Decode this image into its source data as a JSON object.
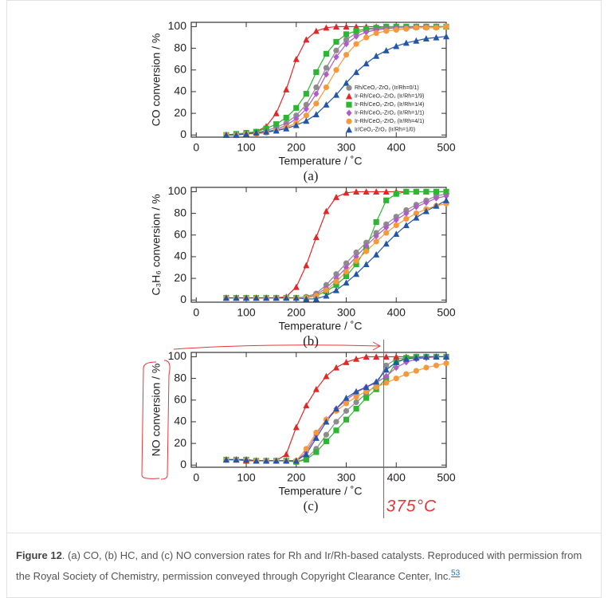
{
  "chart_data": [
    {
      "type": "line",
      "ylabel": "CO conversion / %",
      "xlabel": "Temperature / ˚C",
      "sublabel": "(a)",
      "x": [
        60,
        80,
        100,
        120,
        140,
        160,
        180,
        200,
        220,
        240,
        260,
        280,
        300,
        320,
        340,
        360,
        380,
        400,
        420,
        440,
        460,
        480,
        500
      ],
      "xlim": [
        -10,
        500
      ],
      "xticks": [
        0,
        100,
        200,
        300,
        400,
        500
      ],
      "ylim": [
        -2,
        104
      ],
      "yticks": [
        0,
        20,
        40,
        60,
        80,
        100
      ],
      "legend": "lower right",
      "series": [
        {
          "name": "Rh/CeO₂-ZrO₂ (Ir/Rh=0/1)",
          "color": "#8c8c8c",
          "marker": "circle",
          "values": [
            0,
            1,
            1,
            2,
            4,
            7,
            11,
            18,
            28,
            44,
            62,
            78,
            88,
            94,
            97,
            98,
            99,
            100,
            100,
            100,
            100,
            100,
            100
          ]
        },
        {
          "name": "Ir-Rh/CeO₂-ZrO₂ (Ir/Rh=1/9)",
          "color": "#e02828",
          "marker": "triangle",
          "values": [
            0,
            0,
            1,
            3,
            8,
            20,
            42,
            70,
            88,
            96,
            99,
            100,
            100,
            100,
            100,
            100,
            100,
            100,
            100,
            100,
            100,
            100,
            100
          ]
        },
        {
          "name": "Ir-Rh/CeO₂-ZrO₂ (Ir/Rh=1/4)",
          "color": "#2fb534",
          "marker": "square",
          "values": [
            0,
            1,
            2,
            3,
            6,
            10,
            16,
            25,
            38,
            58,
            75,
            86,
            93,
            96,
            98,
            99,
            100,
            100,
            100,
            100,
            100,
            100,
            100
          ]
        },
        {
          "name": "Ir-Rh/CeO₂-ZrO₂ (Ir/Rh=1/1)",
          "color": "#b05cc8",
          "marker": "diamond",
          "values": [
            0,
            0,
            1,
            1,
            3,
            5,
            9,
            15,
            24,
            38,
            56,
            72,
            84,
            91,
            95,
            97,
            98,
            99,
            99,
            100,
            100,
            100,
            100
          ]
        },
        {
          "name": "Ir-Rh/CeO₂-ZrO₂ (Ir/Rh=4/1)",
          "color": "#f59a3c",
          "marker": "circle",
          "values": [
            0,
            0,
            1,
            1,
            2,
            4,
            7,
            11,
            18,
            29,
            44,
            60,
            74,
            84,
            90,
            94,
            96,
            97,
            98,
            99,
            99,
            99,
            100
          ]
        },
        {
          "name": "Ir/CeO₂-ZrO₂ (Ir/Rh=1/0)",
          "color": "#2456a6",
          "marker": "triangle",
          "values": [
            0,
            0,
            1,
            2,
            3,
            4,
            6,
            9,
            13,
            19,
            28,
            37,
            48,
            58,
            66,
            73,
            78,
            82,
            85,
            87,
            89,
            90,
            91
          ]
        }
      ]
    },
    {
      "type": "line",
      "ylabel": "C₃H₆ conversion / %",
      "xlabel": "Temperature / ˚C",
      "sublabel": "(b)",
      "x": [
        60,
        80,
        100,
        120,
        140,
        160,
        180,
        200,
        220,
        240,
        260,
        280,
        300,
        320,
        340,
        360,
        380,
        400,
        420,
        440,
        460,
        480,
        500
      ],
      "xlim": [
        -10,
        500
      ],
      "xticks": [
        0,
        100,
        200,
        300,
        400,
        500
      ],
      "ylim": [
        -2,
        104
      ],
      "yticks": [
        0,
        20,
        40,
        60,
        80,
        100
      ],
      "series": [
        {
          "color": "#8c8c8c",
          "marker": "circle",
          "values": [
            2,
            2,
            2,
            2,
            2,
            2,
            2,
            2,
            3,
            6,
            14,
            24,
            34,
            44,
            53,
            62,
            70,
            77,
            83,
            88,
            92,
            96,
            98
          ]
        },
        {
          "color": "#e02828",
          "marker": "triangle",
          "values": [
            2,
            2,
            2,
            2,
            2,
            2,
            3,
            12,
            32,
            58,
            82,
            95,
            99,
            100,
            100,
            100,
            100,
            100,
            100,
            100,
            100,
            100,
            100
          ]
        },
        {
          "color": "#2fb534",
          "marker": "square",
          "values": [
            2,
            2,
            2,
            2,
            2,
            2,
            2,
            2,
            2,
            4,
            8,
            14,
            22,
            33,
            48,
            72,
            92,
            98,
            100,
            100,
            100,
            100,
            100
          ]
        },
        {
          "color": "#b05cc8",
          "marker": "diamond",
          "values": [
            2,
            2,
            2,
            2,
            2,
            2,
            2,
            2,
            2,
            5,
            11,
            20,
            30,
            40,
            50,
            59,
            67,
            74,
            80,
            86,
            90,
            94,
            96
          ]
        },
        {
          "color": "#f59a3c",
          "marker": "circle",
          "values": [
            2,
            2,
            2,
            2,
            2,
            2,
            2,
            2,
            2,
            4,
            9,
            17,
            26,
            36,
            45,
            54,
            62,
            69,
            75,
            80,
            84,
            87,
            89
          ]
        },
        {
          "color": "#2456a6",
          "marker": "triangle",
          "values": [
            2,
            2,
            2,
            2,
            2,
            2,
            2,
            2,
            1,
            1,
            4,
            9,
            16,
            24,
            33,
            42,
            52,
            61,
            69,
            76,
            82,
            87,
            92
          ]
        }
      ]
    },
    {
      "type": "line",
      "ylabel": "NO conversion / %",
      "xlabel": "Temperature / ˚C",
      "sublabel": "(c)",
      "x": [
        60,
        80,
        100,
        120,
        140,
        160,
        180,
        200,
        220,
        240,
        260,
        280,
        300,
        320,
        340,
        360,
        380,
        400,
        420,
        440,
        460,
        480,
        500
      ],
      "xlim": [
        -10,
        500
      ],
      "xticks": [
        0,
        100,
        200,
        300,
        400,
        500
      ],
      "ylim": [
        -2,
        104
      ],
      "yticks": [
        0,
        20,
        40,
        60,
        80,
        100
      ],
      "annotations": [
        {
          "text": "375°C",
          "x": 375
        }
      ],
      "series": [
        {
          "color": "#8c8c8c",
          "marker": "circle",
          "values": [
            5,
            5,
            5,
            4,
            4,
            4,
            4,
            3,
            6,
            15,
            28,
            40,
            50,
            58,
            66,
            74,
            92,
            98,
            99,
            100,
            100,
            100,
            100
          ]
        },
        {
          "color": "#e02828",
          "marker": "triangle",
          "values": [
            5,
            5,
            4,
            4,
            4,
            4,
            10,
            35,
            55,
            70,
            82,
            90,
            95,
            98,
            100,
            100,
            100,
            100,
            100,
            100,
            100,
            100,
            100
          ]
        },
        {
          "color": "#2fb534",
          "marker": "square",
          "values": [
            5,
            5,
            5,
            4,
            4,
            4,
            4,
            3,
            5,
            12,
            22,
            32,
            42,
            52,
            62,
            70,
            80,
            95,
            99,
            100,
            100,
            100,
            100
          ]
        },
        {
          "color": "#b05cc8",
          "marker": "diamond",
          "values": [
            5,
            5,
            5,
            4,
            4,
            4,
            4,
            4,
            12,
            28,
            42,
            52,
            60,
            67,
            72,
            76,
            82,
            90,
            95,
            98,
            99,
            100,
            100
          ]
        },
        {
          "color": "#f59a3c",
          "marker": "circle",
          "values": [
            5,
            5,
            5,
            4,
            4,
            4,
            4,
            4,
            15,
            30,
            42,
            50,
            57,
            63,
            68,
            72,
            76,
            80,
            84,
            87,
            90,
            92,
            94
          ]
        },
        {
          "color": "#2456a6",
          "marker": "triangle",
          "values": [
            5,
            5,
            5,
            4,
            4,
            4,
            4,
            4,
            10,
            25,
            40,
            52,
            62,
            68,
            72,
            77,
            88,
            95,
            98,
            99,
            100,
            100,
            100
          ]
        }
      ]
    }
  ],
  "caption": {
    "label": "Figure 12",
    "text": ". (a) CO, (b) HC, and (c) NO conversion rates for Rh and Ir/Rh-based catalysts. Reproduced with permission from the Royal Society of Chemistry, permission conveyed through Copyright Clearance Center, Inc.",
    "ref": "53"
  }
}
